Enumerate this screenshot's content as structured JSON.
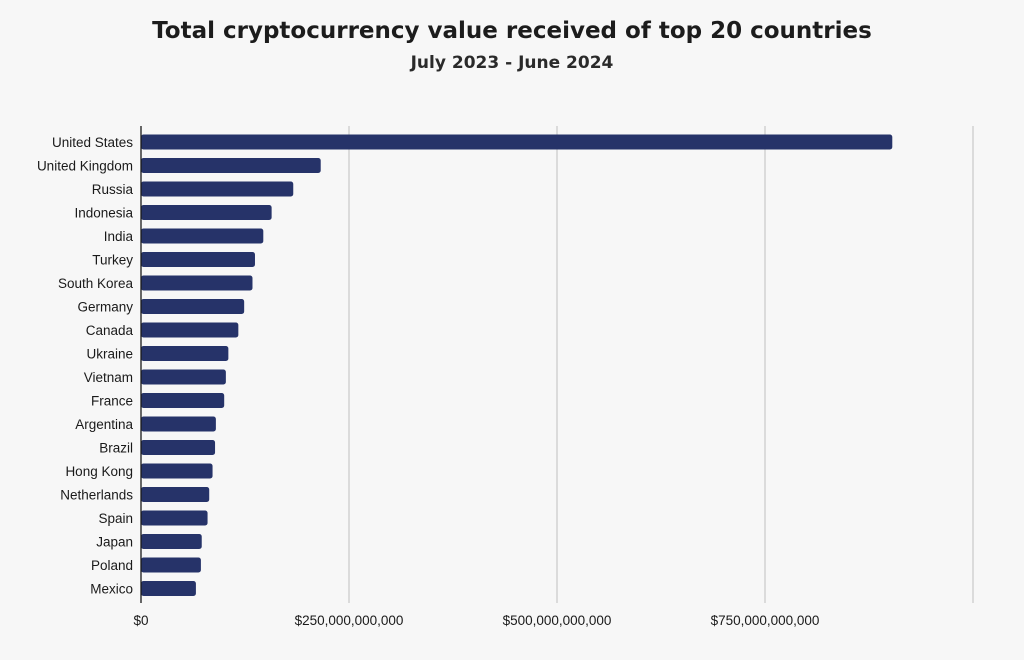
{
  "chart_data": {
    "type": "bar",
    "orientation": "horizontal",
    "title": "Total cryptocurrency value received of top 20 countries",
    "subtitle": "July 2023 - June 2024",
    "xlabel": "",
    "ylabel": "",
    "categories": [
      "United States",
      "United Kingdom",
      "Russia",
      "Indonesia",
      "India",
      "Turkey",
      "South Korea",
      "Germany",
      "Canada",
      "Ukraine",
      "Vietnam",
      "France",
      "Argentina",
      "Brazil",
      "Hong Kong",
      "Netherlands",
      "Spain",
      "Japan",
      "Poland",
      "Mexico"
    ],
    "values": [
      903000000000,
      216000000000,
      183000000000,
      157000000000,
      147000000000,
      137000000000,
      134000000000,
      124000000000,
      117000000000,
      105000000000,
      102000000000,
      100000000000,
      90000000000,
      89000000000,
      86000000000,
      82000000000,
      80000000000,
      73000000000,
      72000000000,
      66000000000
    ],
    "xlim": [
      0,
      1000000000000
    ],
    "ticks": [
      0,
      250000000000,
      500000000000,
      750000000000,
      1000000000000
    ],
    "tick_labels": [
      "$0",
      "$250,000,000,000",
      "$500,000,000,000",
      "$750,000,000,000",
      ""
    ],
    "grid": true,
    "bar_color": "#263369",
    "grid_color": "#c9c9c9",
    "axis_color": "#1a1a1a"
  }
}
